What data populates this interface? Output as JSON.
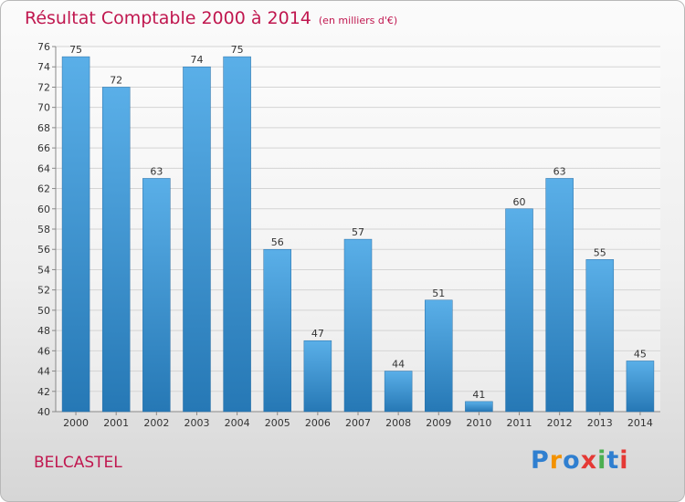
{
  "title": "Résultat Comptable 2000 à 2014",
  "subtitle": "(en milliers d'€)",
  "town": "BELCASTEL",
  "logo": {
    "letters": [
      "P",
      "r",
      "o",
      "x",
      "i",
      "t",
      "i"
    ],
    "colors": [
      "#2f7fd0",
      "#f39200",
      "#2f7fd0",
      "#e53935",
      "#4caf50",
      "#2f7fd0",
      "#e53935"
    ]
  },
  "colors": {
    "accent": "#c0174f",
    "bar_top": "#5aafe8",
    "bar_bottom": "#2678b5"
  },
  "chart_data": {
    "type": "bar",
    "categories": [
      "2000",
      "2001",
      "2002",
      "2003",
      "2004",
      "2005",
      "2006",
      "2007",
      "2008",
      "2009",
      "2010",
      "2011",
      "2012",
      "2013",
      "2014"
    ],
    "values": [
      75,
      72,
      63,
      74,
      75,
      56,
      47,
      57,
      44,
      51,
      41,
      60,
      63,
      55,
      45
    ],
    "ylim": [
      40,
      76
    ],
    "yticks": [
      40,
      42,
      44,
      46,
      48,
      50,
      52,
      54,
      56,
      58,
      60,
      62,
      64,
      66,
      68,
      70,
      72,
      74,
      76
    ],
    "grid": true,
    "xlabel": "",
    "ylabel": ""
  }
}
